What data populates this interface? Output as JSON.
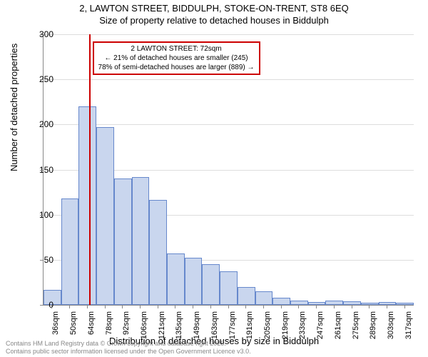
{
  "title": {
    "line1": "2, LAWTON STREET, BIDDULPH, STOKE-ON-TRENT, ST8 6EQ",
    "line2": "Size of property relative to detached houses in Biddulph"
  },
  "ylabel": "Number of detached properties",
  "xlabel": "Distribution of detached houses by size in Biddulph",
  "footer": {
    "line1": "Contains HM Land Registry data © Crown copyright and database right 2025.",
    "line2": "Contains public sector information licensed under the Open Government Licence v3.0."
  },
  "annotation": {
    "line1": "2 LAWTON STREET: 72sqm",
    "line2": "← 21% of detached houses are smaller (245)",
    "line3": "78% of semi-detached houses are larger (889) →"
  },
  "chart": {
    "type": "histogram",
    "ylim": [
      0,
      300
    ],
    "ytick_step": 50,
    "yticks": [
      0,
      50,
      100,
      150,
      200,
      250,
      300
    ],
    "xticks": [
      "36sqm",
      "50sqm",
      "64sqm",
      "78sqm",
      "92sqm",
      "106sqm",
      "121sqm",
      "135sqm",
      "149sqm",
      "163sqm",
      "177sqm",
      "191sqm",
      "205sqm",
      "219sqm",
      "233sqm",
      "247sqm",
      "261sqm",
      "275sqm",
      "289sqm",
      "303sqm",
      "317sqm"
    ],
    "bar_values": [
      17,
      118,
      220,
      197,
      140,
      142,
      116,
      57,
      52,
      45,
      37,
      20,
      15,
      8,
      5,
      3,
      5,
      4,
      2,
      3,
      2
    ],
    "bar_fill": "#c9d6ee",
    "bar_border": "#6688cc",
    "grid_color": "#dddddd",
    "background_color": "#ffffff",
    "marker_color": "#cc0000",
    "marker_x_index": 2.57,
    "title_fontsize": 13,
    "label_fontsize": 13,
    "tick_fontsize": 11
  }
}
